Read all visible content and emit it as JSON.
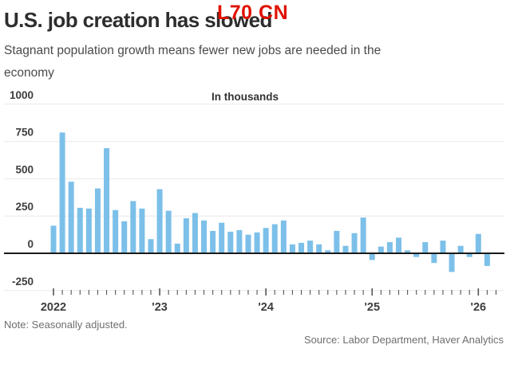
{
  "header": {
    "title": "U.S. job creation has slowed",
    "subtitle_line1": "Stagnant population growth means fewer new jobs are needed in the",
    "subtitle_line2": "economy",
    "watermark": "L70 CN",
    "watermark_color": "#e01000"
  },
  "footer": {
    "note": "Note: Seasonally adjusted.",
    "source": "Source: Labor Department, Haver Analytics"
  },
  "chart_data": {
    "type": "bar",
    "title": "U.S. job creation has slowed",
    "unit_label": "In thousands",
    "ylabel": "",
    "xlabel": "",
    "ylim": [
      -250,
      1000
    ],
    "yticks": [
      1000,
      750,
      500,
      250,
      0,
      -250
    ],
    "year_labels": [
      "2022",
      "'23",
      "'24",
      "'25",
      "'26"
    ],
    "grid": true,
    "bar_color": "#7cc0e9",
    "gridline_color": "#ebe8e8",
    "zero_line_color": "#1a1a1a",
    "axis_text_color": "#3d3d3d",
    "tick_color": "#555555",
    "x": [
      "2022-01",
      "2022-02",
      "2022-03",
      "2022-04",
      "2022-05",
      "2022-06",
      "2022-07",
      "2022-08",
      "2022-09",
      "2022-10",
      "2022-11",
      "2022-12",
      "2023-01",
      "2023-02",
      "2023-03",
      "2023-04",
      "2023-05",
      "2023-06",
      "2023-07",
      "2023-08",
      "2023-09",
      "2023-10",
      "2023-11",
      "2023-12",
      "2024-01",
      "2024-02",
      "2024-03",
      "2024-04",
      "2024-05",
      "2024-06",
      "2024-07",
      "2024-08",
      "2024-09",
      "2024-10",
      "2024-11",
      "2024-12",
      "2025-01",
      "2025-02",
      "2025-03",
      "2025-04",
      "2025-05",
      "2025-06",
      "2025-07",
      "2025-08",
      "2025-09",
      "2025-10",
      "2025-11",
      "2025-12",
      "2026-01",
      "2026-02"
    ],
    "values": [
      185,
      810,
      480,
      305,
      300,
      435,
      705,
      290,
      215,
      350,
      300,
      95,
      430,
      285,
      65,
      235,
      270,
      220,
      150,
      205,
      145,
      155,
      125,
      140,
      170,
      195,
      220,
      60,
      70,
      85,
      60,
      20,
      150,
      50,
      135,
      240,
      -45,
      45,
      75,
      105,
      20,
      -25,
      75,
      -65,
      85,
      -125,
      50,
      -25,
      130,
      -85
    ]
  }
}
